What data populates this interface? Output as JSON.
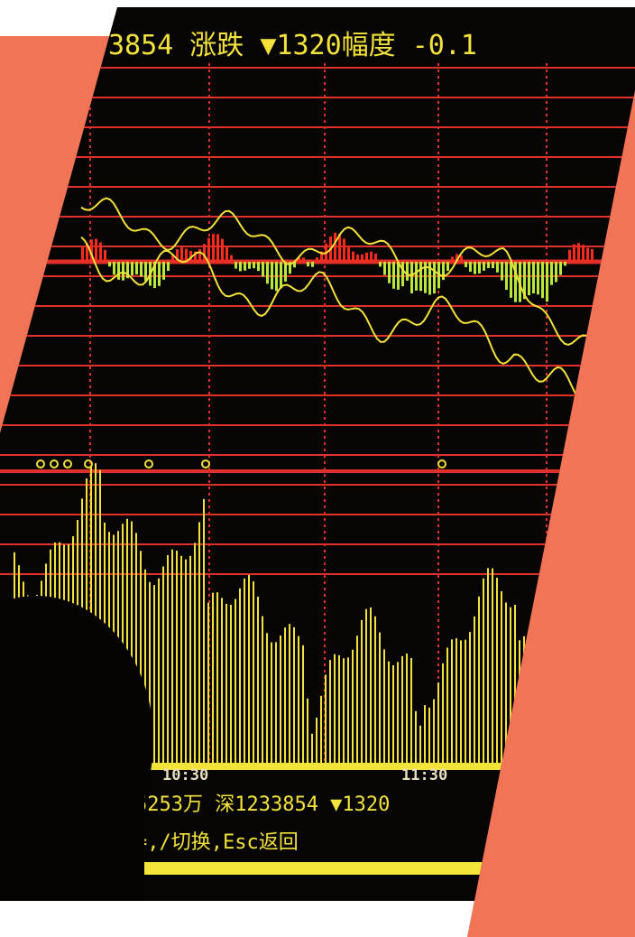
{
  "screen": {
    "header": "3854 涨跌 ▼1320幅度 -0.1",
    "times": [
      "10:30",
      "11:30"
    ],
    "status": "5253万 深1233854 ▼1320",
    "help": "=,/切换,Esc返回"
  }
}
